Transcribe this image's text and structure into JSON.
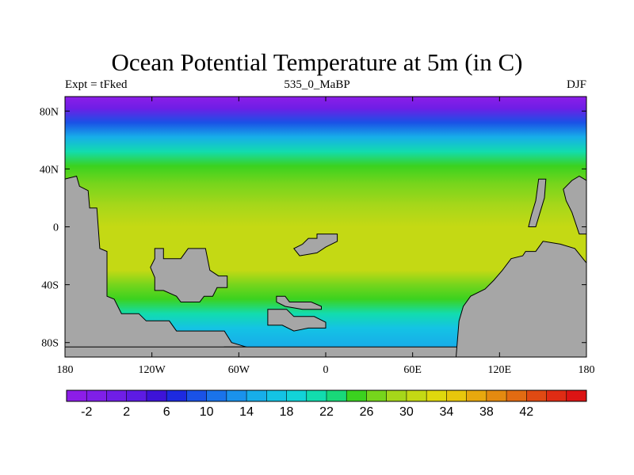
{
  "title": "Ocean Potential Temperature at 5m (in C)",
  "subtitle_left": "Expt = tFked",
  "subtitle_center": "535_0_MaBP",
  "subtitle_right": "DJF",
  "map": {
    "lon_range": [
      -180,
      180
    ],
    "lat_range": [
      -90,
      90
    ],
    "land_color": "#a6a6a6",
    "lon_ticks": [
      {
        "value": -180,
        "label": "180"
      },
      {
        "value": -120,
        "label": "120W"
      },
      {
        "value": -60,
        "label": "60W"
      },
      {
        "value": 0,
        "label": "0"
      },
      {
        "value": 60,
        "label": "60E"
      },
      {
        "value": 120,
        "label": "120E"
      },
      {
        "value": 180,
        "label": "180"
      }
    ],
    "lat_ticks": [
      {
        "value": 80,
        "label": "80N"
      },
      {
        "value": 40,
        "label": "40N"
      },
      {
        "value": 0,
        "label": "0"
      },
      {
        "value": -40,
        "label": "40S"
      },
      {
        "value": -80,
        "label": "80S"
      }
    ],
    "temperature_profile": [
      {
        "lat": 90,
        "t": -3
      },
      {
        "lat": 82,
        "t": 1
      },
      {
        "lat": 72,
        "t": 8
      },
      {
        "lat": 62,
        "t": 15
      },
      {
        "lat": 52,
        "t": 20
      },
      {
        "lat": 42,
        "t": 24
      },
      {
        "lat": 30,
        "t": 27
      },
      {
        "lat": 15,
        "t": 29
      },
      {
        "lat": 0,
        "t": 30
      },
      {
        "lat": -15,
        "t": 31
      },
      {
        "lat": -30,
        "t": 30
      },
      {
        "lat": -40,
        "t": 27
      },
      {
        "lat": -50,
        "t": 24
      },
      {
        "lat": -60,
        "t": 20
      },
      {
        "lat": -70,
        "t": 17
      },
      {
        "lat": -82,
        "t": 14
      }
    ],
    "land": [
      {
        "name": "western-landmass",
        "polygon": [
          [
            -180,
            -90
          ],
          [
            -180,
            33
          ],
          [
            -172,
            35
          ],
          [
            -170,
            28
          ],
          [
            -164,
            25
          ],
          [
            -163,
            13
          ],
          [
            -158,
            13
          ],
          [
            -156,
            -15
          ],
          [
            -151,
            -17
          ],
          [
            -151,
            -48
          ],
          [
            -146,
            -50
          ],
          [
            -141,
            -60
          ],
          [
            -129,
            -60
          ],
          [
            -124,
            -65
          ],
          [
            -108,
            -65
          ],
          [
            -103,
            -72
          ],
          [
            -70,
            -72
          ],
          [
            -65,
            -80
          ],
          [
            -55,
            -83
          ],
          [
            -55,
            -90
          ]
        ]
      },
      {
        "name": "south-landmass",
        "polygon": [
          [
            -55,
            -90
          ],
          [
            -55,
            -83
          ],
          [
            -70,
            -83
          ],
          [
            -70,
            -90
          ]
        ]
      },
      {
        "name": "pole-landmass",
        "polygon": [
          [
            -180,
            -90
          ],
          [
            180,
            -90
          ],
          [
            180,
            -83
          ],
          [
            -180,
            -83
          ]
        ]
      },
      {
        "name": "central-continent",
        "polygon": [
          [
            -118,
            -15
          ],
          [
            -112,
            -15
          ],
          [
            -112,
            -22
          ],
          [
            -100,
            -22
          ],
          [
            -95,
            -15
          ],
          [
            -83,
            -15
          ],
          [
            -80,
            -30
          ],
          [
            -74,
            -34
          ],
          [
            -68,
            -34
          ],
          [
            -68,
            -42
          ],
          [
            -75,
            -42
          ],
          [
            -78,
            -48
          ],
          [
            -84,
            -48
          ],
          [
            -87,
            -52
          ],
          [
            -100,
            -52
          ],
          [
            -103,
            -48
          ],
          [
            -112,
            -44
          ],
          [
            -118,
            -44
          ],
          [
            -118,
            -35
          ],
          [
            -121,
            -28
          ],
          [
            -118,
            -22
          ]
        ]
      },
      {
        "name": "equatorial-island",
        "polygon": [
          [
            -12,
            -8
          ],
          [
            -6,
            -8
          ],
          [
            -6,
            -5
          ],
          [
            8,
            -5
          ],
          [
            8,
            -10
          ],
          [
            0,
            -14
          ],
          [
            -6,
            -18
          ],
          [
            -18,
            -20
          ],
          [
            -22,
            -15
          ],
          [
            -16,
            -12
          ]
        ]
      },
      {
        "name": "southern-island-upper",
        "polygon": [
          [
            -34,
            -48
          ],
          [
            -28,
            -48
          ],
          [
            -25,
            -52
          ],
          [
            -10,
            -52
          ],
          [
            -3,
            -55
          ],
          [
            -3,
            -57
          ],
          [
            -16,
            -57
          ],
          [
            -28,
            -55
          ],
          [
            -34,
            -52
          ]
        ]
      },
      {
        "name": "southern-island-lower",
        "polygon": [
          [
            -40,
            -57
          ],
          [
            -27,
            -57
          ],
          [
            -22,
            -62
          ],
          [
            -8,
            -62
          ],
          [
            0,
            -66
          ],
          [
            0,
            -70
          ],
          [
            -12,
            -70
          ],
          [
            -22,
            -72
          ],
          [
            -30,
            -68
          ],
          [
            -40,
            -68
          ]
        ]
      },
      {
        "name": "southeast-continent",
        "polygon": [
          [
            180,
            -90
          ],
          [
            180,
            -25
          ],
          [
            172,
            -15
          ],
          [
            162,
            -12
          ],
          [
            150,
            -10
          ],
          [
            145,
            -17
          ],
          [
            138,
            -17
          ],
          [
            136,
            -20
          ],
          [
            128,
            -22
          ],
          [
            122,
            -30
          ],
          [
            116,
            -37
          ],
          [
            110,
            -43
          ],
          [
            100,
            -48
          ],
          [
            95,
            -55
          ],
          [
            92,
            -65
          ],
          [
            90,
            -90
          ]
        ]
      },
      {
        "name": "northeast-arm",
        "polygon": [
          [
            180,
            32
          ],
          [
            180,
            -5
          ],
          [
            175,
            -5
          ],
          [
            170,
            10
          ],
          [
            166,
            18
          ],
          [
            164,
            26
          ],
          [
            170,
            32
          ],
          [
            175,
            35
          ]
        ]
      },
      {
        "name": "eastern-sliver",
        "polygon": [
          [
            147,
            33
          ],
          [
            152,
            33
          ],
          [
            151,
            20
          ],
          [
            148,
            10
          ],
          [
            145,
            0
          ],
          [
            140,
            0
          ],
          [
            142,
            8
          ],
          [
            145,
            18
          ]
        ]
      }
    ]
  },
  "colorbar": {
    "colors": [
      "#8c1de8",
      "#7f1fe8",
      "#6f1ee6",
      "#5d1be3",
      "#3d13d8",
      "#1d2ae0",
      "#1a52e6",
      "#1a73ea",
      "#1a92ec",
      "#17aee9",
      "#14c3e4",
      "#12d3d8",
      "#12dcae",
      "#19d879",
      "#3bd21f",
      "#76d51c",
      "#a6d71a",
      "#c4d914",
      "#dfd80d",
      "#e8c70c",
      "#e8a80e",
      "#e48a10",
      "#e26b12",
      "#e04a13",
      "#df2c14",
      "#dc1414"
    ],
    "min": -4,
    "step": 2,
    "labels": [
      {
        "value": -2,
        "text": "-2"
      },
      {
        "value": 2,
        "text": "2"
      },
      {
        "value": 6,
        "text": "6"
      },
      {
        "value": 10,
        "text": "10"
      },
      {
        "value": 14,
        "text": "14"
      },
      {
        "value": 18,
        "text": "18"
      },
      {
        "value": 22,
        "text": "22"
      },
      {
        "value": 26,
        "text": "26"
      },
      {
        "value": 30,
        "text": "30"
      },
      {
        "value": 34,
        "text": "34"
      },
      {
        "value": 38,
        "text": "38"
      },
      {
        "value": 42,
        "text": "42"
      }
    ]
  }
}
